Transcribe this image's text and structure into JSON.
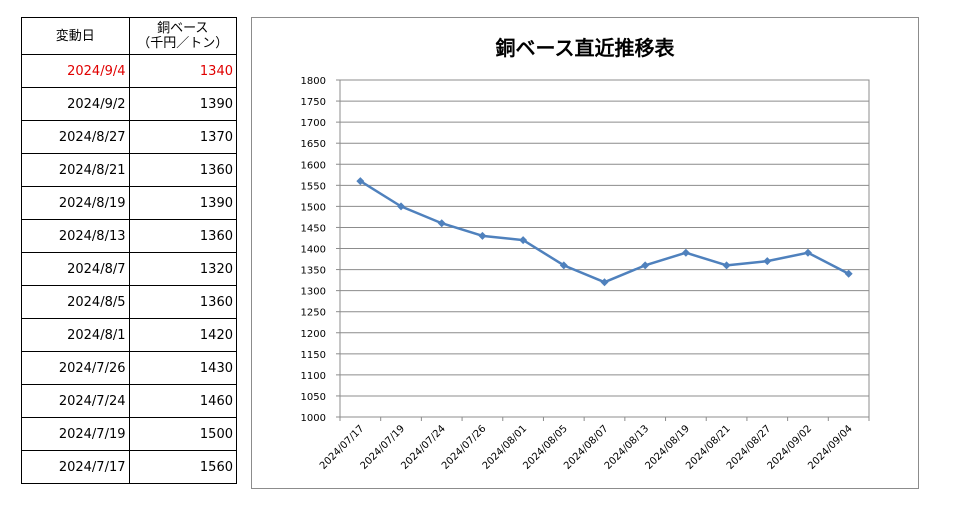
{
  "table": {
    "header_date": "変動日",
    "header_value_line1": "銅ベース",
    "header_value_line2": "（千円／トン）",
    "rows": [
      {
        "date": "2024/9/4",
        "value": "1340"
      },
      {
        "date": "2024/9/2",
        "value": "1390"
      },
      {
        "date": "2024/8/27",
        "value": "1370"
      },
      {
        "date": "2024/8/21",
        "value": "1360"
      },
      {
        "date": "2024/8/19",
        "value": "1390"
      },
      {
        "date": "2024/8/13",
        "value": "1360"
      },
      {
        "date": "2024/8/7",
        "value": "1320"
      },
      {
        "date": "2024/8/5",
        "value": "1360"
      },
      {
        "date": "2024/8/1",
        "value": "1420"
      },
      {
        "date": "2024/7/26",
        "value": "1430"
      },
      {
        "date": "2024/7/24",
        "value": "1460"
      },
      {
        "date": "2024/7/19",
        "value": "1500"
      },
      {
        "date": "2024/7/17",
        "value": "1560"
      }
    ],
    "highlight_color": "#e00000"
  },
  "chart_data": {
    "type": "line",
    "title": "銅ベース直近推移表",
    "xlabel": "",
    "ylabel": "",
    "categories": [
      "2024/07/17",
      "2024/07/19",
      "2024/07/24",
      "2024/07/26",
      "2024/08/01",
      "2024/08/05",
      "2024/08/07",
      "2024/08/13",
      "2024/08/19",
      "2024/08/21",
      "2024/08/27",
      "2024/09/02",
      "2024/09/04"
    ],
    "values": [
      1560,
      1500,
      1460,
      1430,
      1420,
      1360,
      1320,
      1360,
      1390,
      1360,
      1370,
      1390,
      1340
    ],
    "ylim": [
      1000,
      1800
    ],
    "ystep": 50,
    "grid": true,
    "line_color": "#4f81bd",
    "marker": "diamond"
  }
}
